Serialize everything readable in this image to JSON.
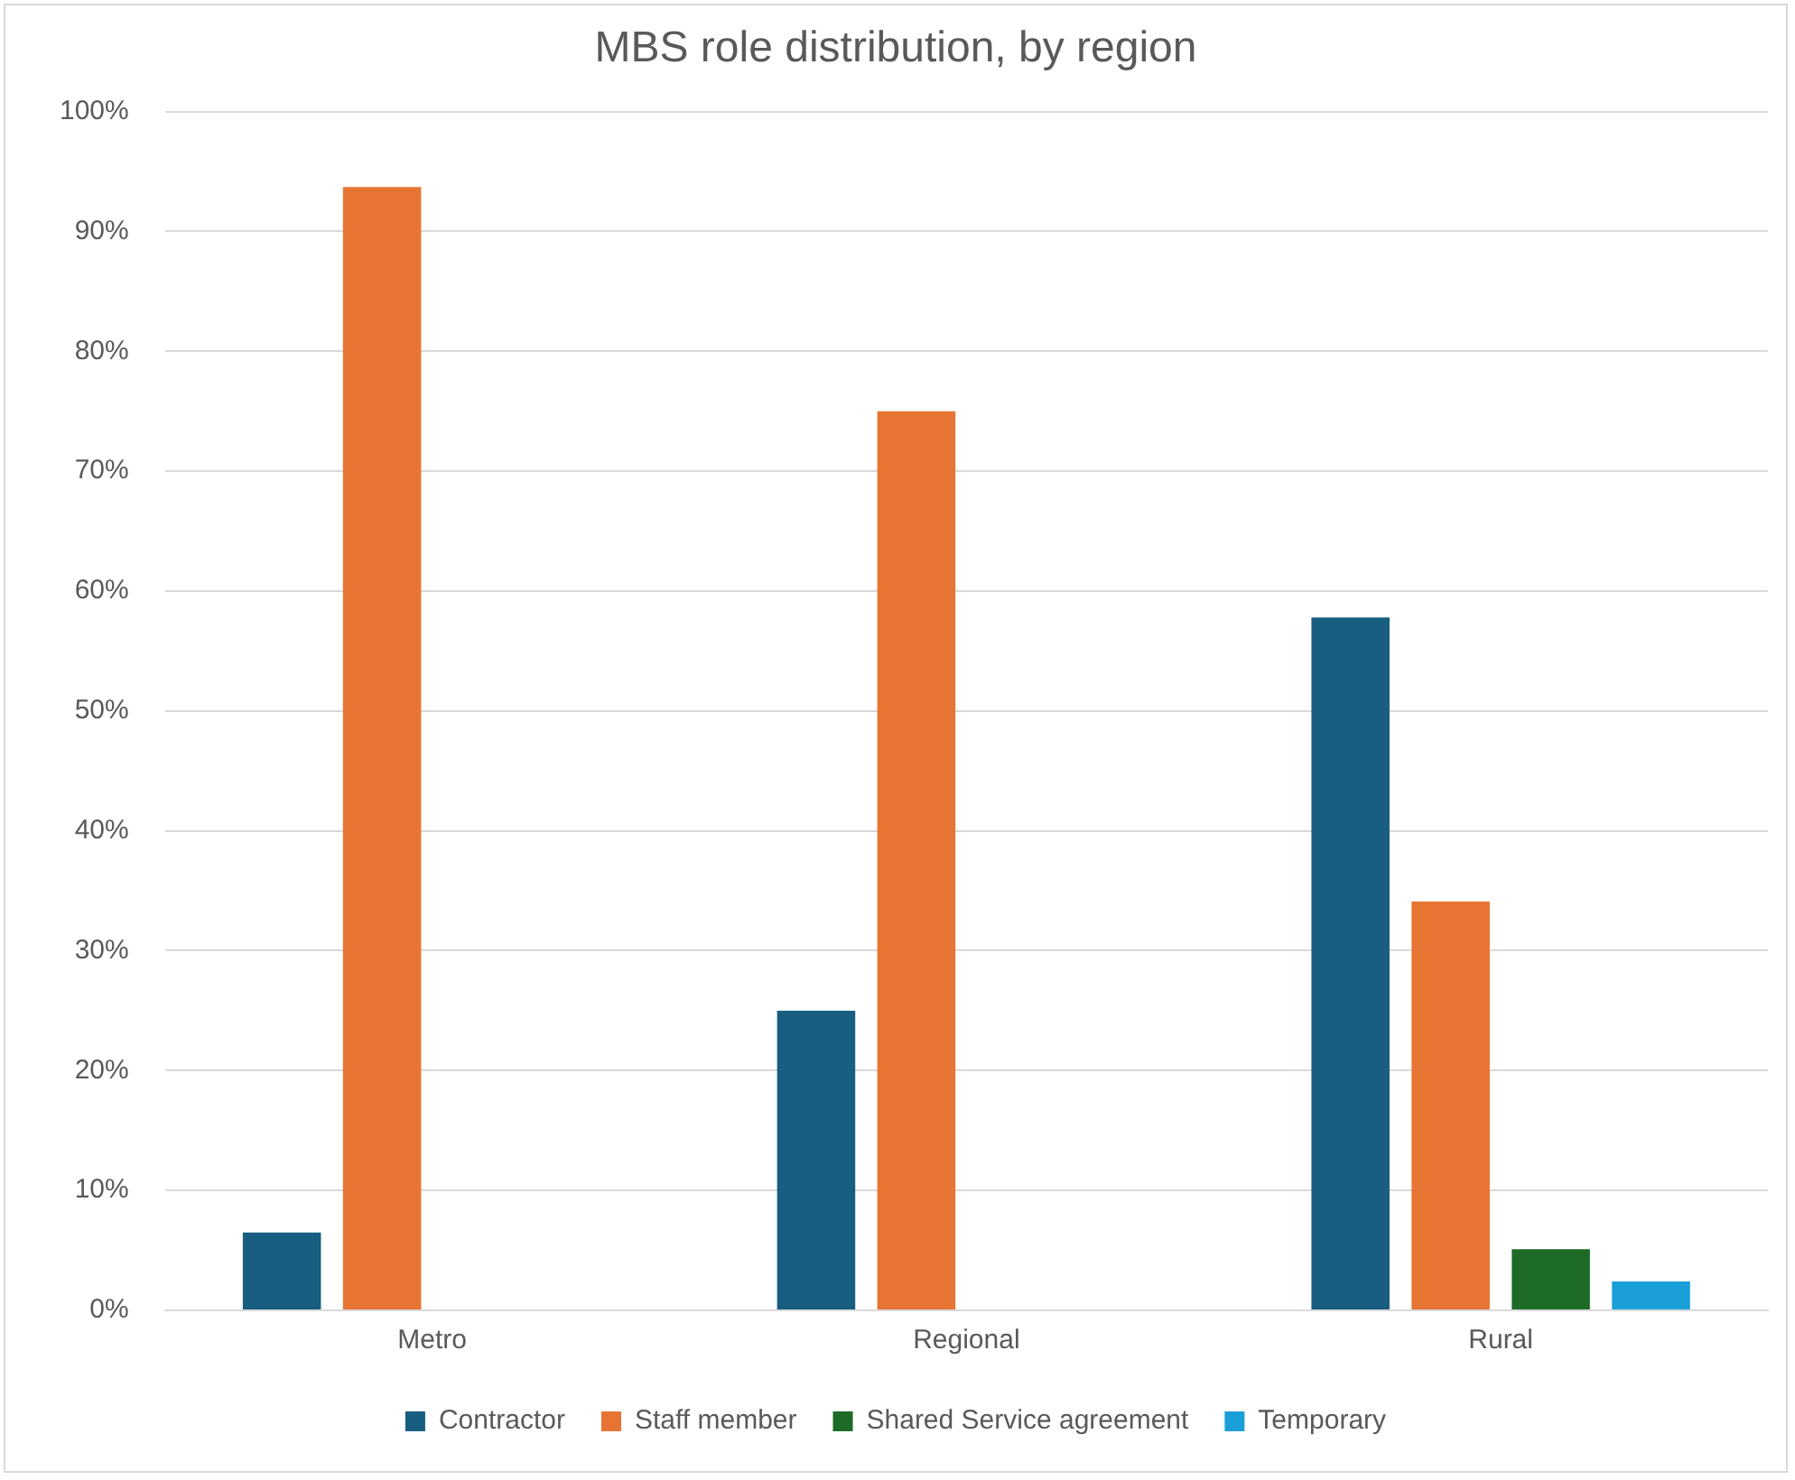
{
  "chart_data": {
    "type": "bar",
    "title": "MBS role distribution, by region",
    "categories": [
      "Metro",
      "Regional",
      "Rural"
    ],
    "series": [
      {
        "name": "Contractor",
        "color": "#175e80",
        "values": [
          6.5,
          25,
          57.8
        ]
      },
      {
        "name": "Staff member",
        "color": "#e87433",
        "values": [
          93.7,
          75,
          34.1
        ]
      },
      {
        "name": "Shared Service agreement",
        "color": "#1d6b27",
        "values": [
          0,
          0,
          5.1
        ]
      },
      {
        "name": "Temporary",
        "color": "#1a9fd9",
        "values": [
          0,
          0,
          2.4
        ]
      }
    ],
    "ylim": [
      0,
      100
    ],
    "yticks": [
      {
        "value": 0,
        "label": "0%"
      },
      {
        "value": 10,
        "label": "10%"
      },
      {
        "value": 20,
        "label": "20%"
      },
      {
        "value": 30,
        "label": "30%"
      },
      {
        "value": 40,
        "label": "40%"
      },
      {
        "value": 50,
        "label": "50%"
      },
      {
        "value": 60,
        "label": "60%"
      },
      {
        "value": 70,
        "label": "70%"
      },
      {
        "value": 80,
        "label": "80%"
      },
      {
        "value": 90,
        "label": "90%"
      },
      {
        "value": 100,
        "label": "100%"
      }
    ],
    "grid": "y",
    "legend": "bottom"
  }
}
